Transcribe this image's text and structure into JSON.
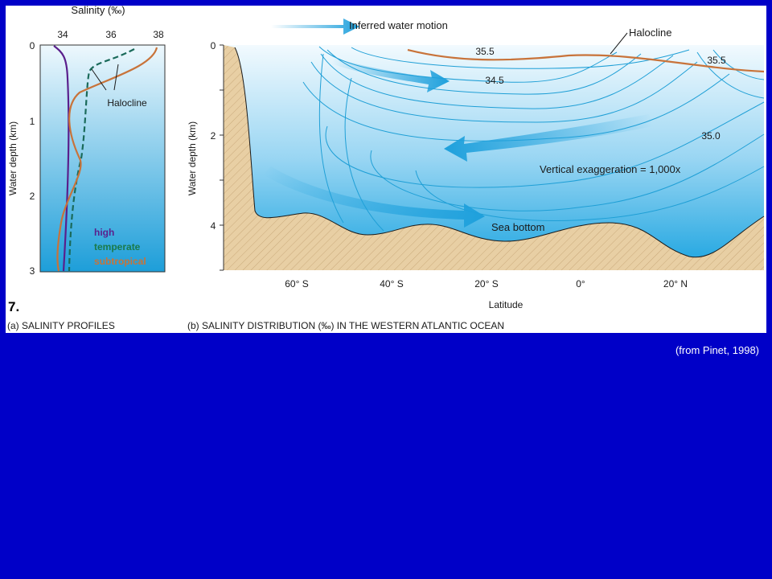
{
  "slide_number": "7.",
  "credit": "(from Pinet, 1998)",
  "panel_a": {
    "axis_title": "Salinity (‰)",
    "x_ticks": [
      "34",
      "36",
      "38"
    ],
    "y_ticks": [
      "0",
      "1",
      "2",
      "3"
    ],
    "y_label": "Water depth (km)",
    "halocline_label": "Halocline",
    "legend": [
      {
        "label": "high",
        "color": "#5a1f8c"
      },
      {
        "label": "temperate",
        "color": "#1a7a4a"
      },
      {
        "label": "subtropical",
        "color": "#c8733a"
      }
    ],
    "caption": "(a) SALINITY PROFILES"
  },
  "panel_b": {
    "legend_label": "Inferred water motion",
    "halocline_label": "Halocline",
    "contour_labels": [
      "35.5",
      "34.5",
      "35.5",
      "35.0"
    ],
    "y_ticks": [
      "0",
      "2",
      "4"
    ],
    "y_label": "Water depth (km)",
    "x_ticks": [
      "60° S",
      "40° S",
      "20° S",
      "0°",
      "20° N"
    ],
    "x_label": "Latitude",
    "vertical_exaggeration": "Vertical exaggeration = 1,000x",
    "sea_bottom_label": "Sea bottom",
    "caption": "(b) SALINITY DISTRIBUTION (‰) IN THE WESTERN ATLANTIC OCEAN"
  },
  "colors": {
    "background": "#0000c8",
    "ocean_light": "#e8f6fd",
    "ocean_dark": "#1ea7e0",
    "sediment": "#e8cfa4",
    "halocline": "#c8733a",
    "contour": "#1f9fd6",
    "arrow": "#1ea0dc"
  }
}
